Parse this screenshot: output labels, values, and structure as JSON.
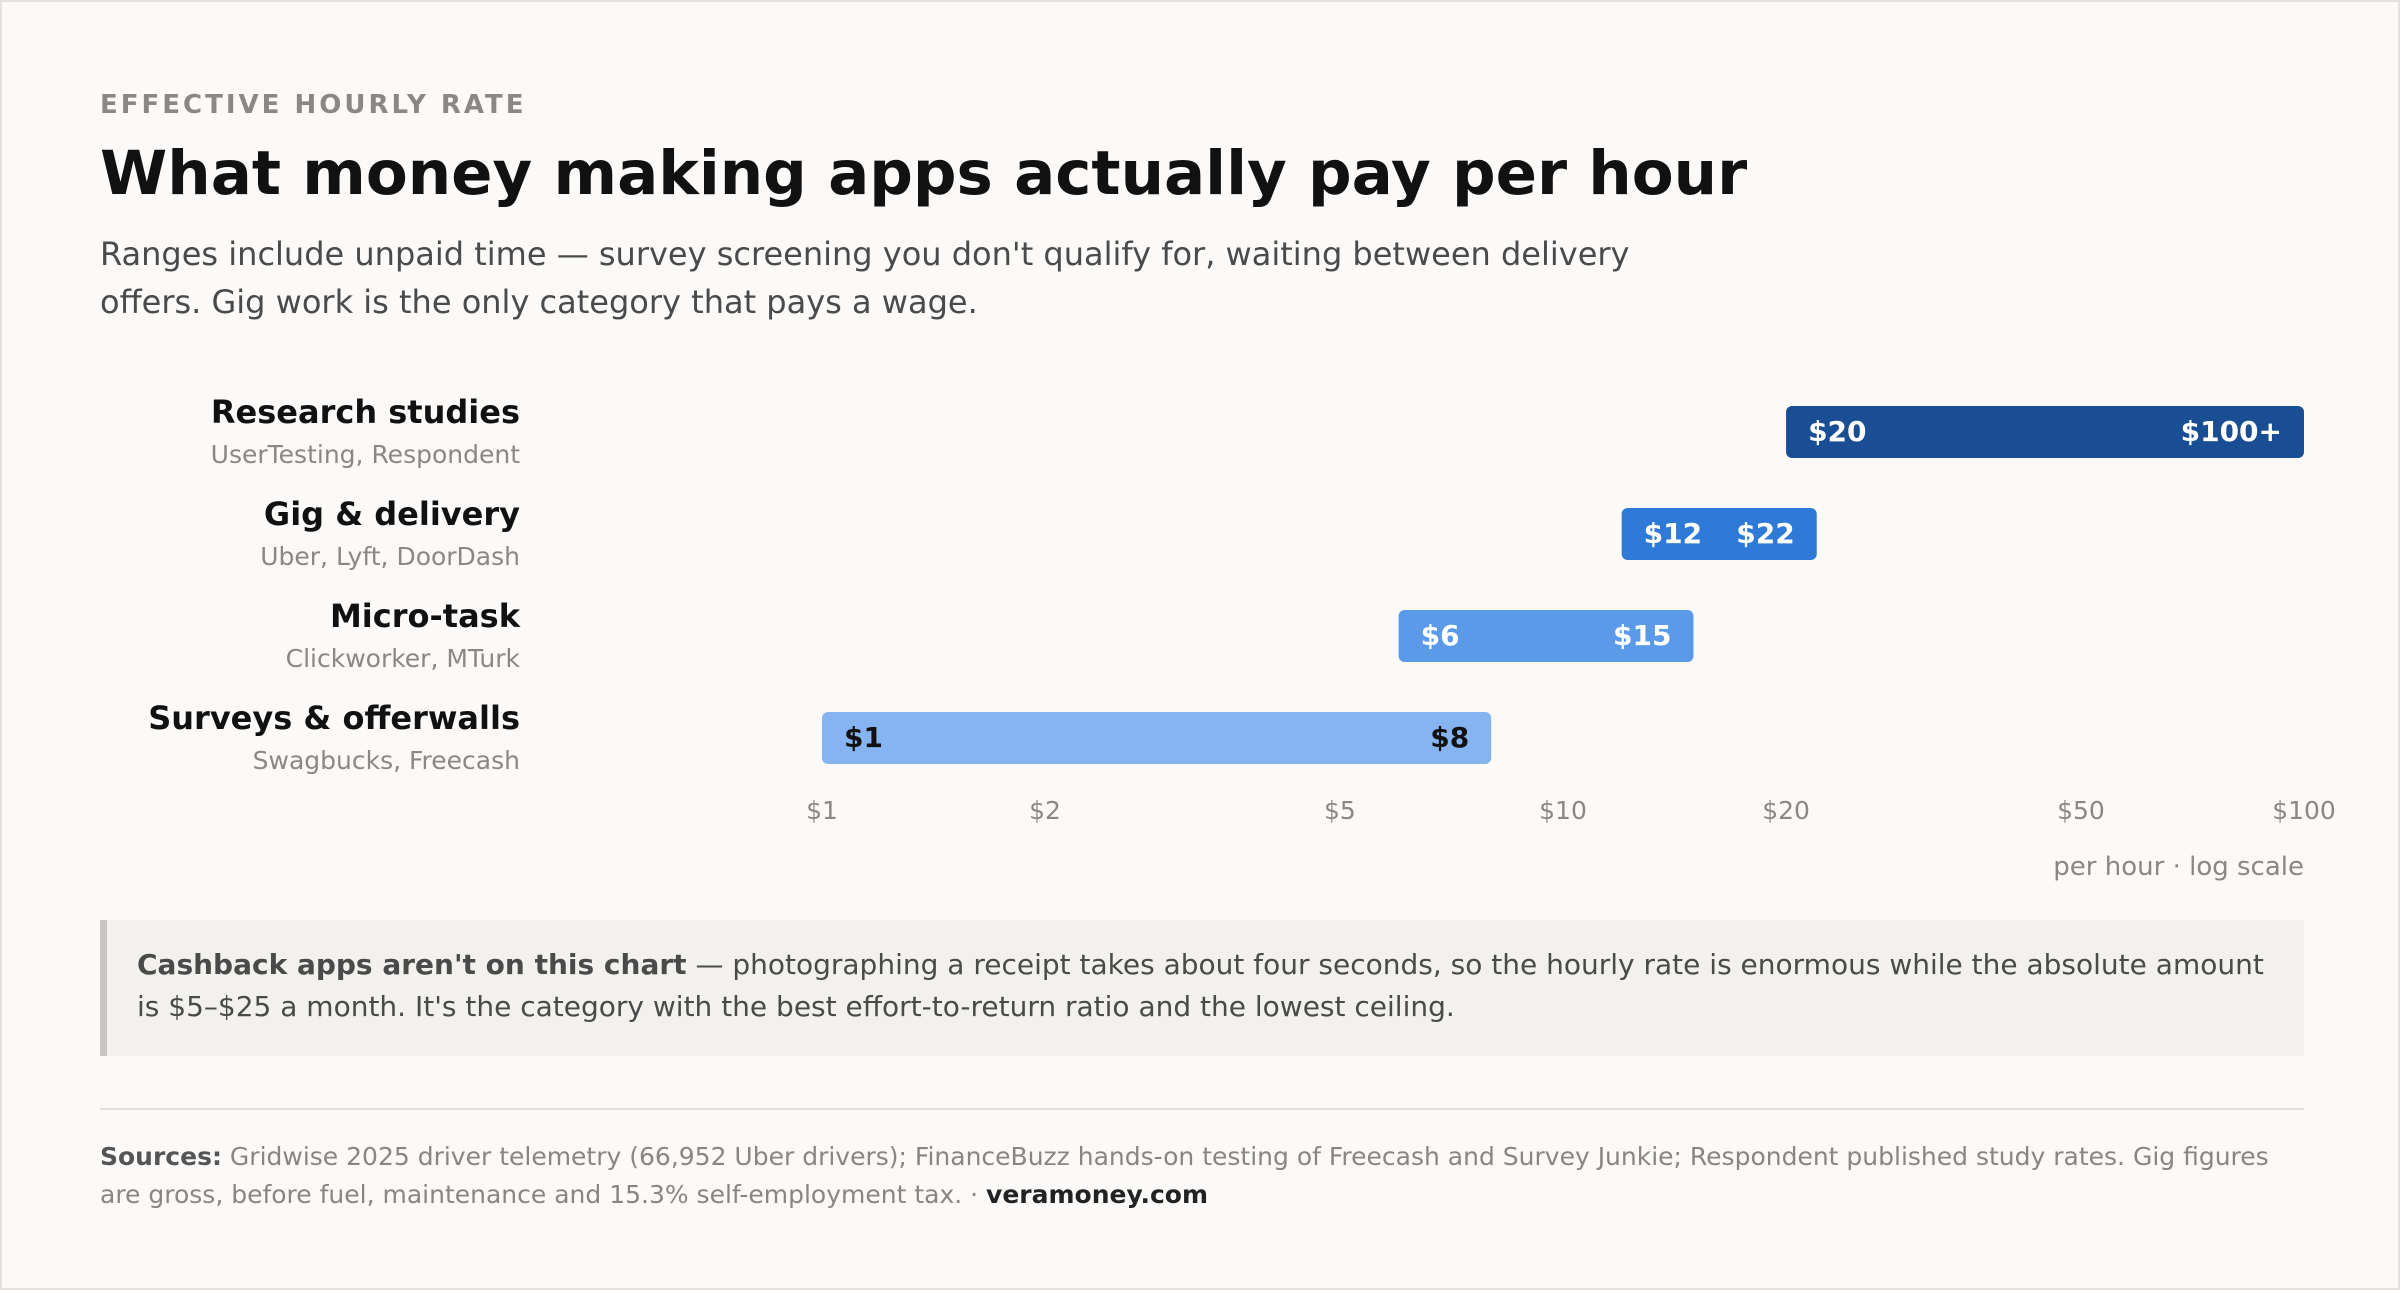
{
  "header": {
    "eyebrow": "EFFECTIVE HOURLY RATE",
    "title": "What money making apps actually pay per hour",
    "subtitle": "Ranges include unpaid time — survey screening you don't qualify for, waiting between delivery offers. Gig work is the only category that pays a wage."
  },
  "chart_data": {
    "type": "bar",
    "orientation": "horizontal-range",
    "x_scale": "log",
    "xlim": [
      1,
      100
    ],
    "x_ticks": [
      {
        "value": 1,
        "label": "$1"
      },
      {
        "value": 2,
        "label": "$2"
      },
      {
        "value": 5,
        "label": "$5"
      },
      {
        "value": 10,
        "label": "$10"
      },
      {
        "value": 20,
        "label": "$20"
      },
      {
        "value": 50,
        "label": "$50"
      },
      {
        "value": 100,
        "label": "$100"
      }
    ],
    "x_unit_label": "per hour · log scale",
    "grid": false,
    "categories": [
      {
        "name": "Research studies",
        "examples": "UserTesting, Respondent",
        "low": 20,
        "high": 100,
        "low_label": "$20",
        "high_label": "$100+",
        "color": "#1a4e94",
        "text_color": "#ffffff"
      },
      {
        "name": "Gig & delivery",
        "examples": "Uber, Lyft, DoorDash",
        "low": 12,
        "high": 22,
        "low_label": "$12",
        "high_label": "$22",
        "color": "#2f7ad6",
        "text_color": "#ffffff"
      },
      {
        "name": "Micro-task",
        "examples": "Clickworker, MTurk",
        "low": 6,
        "high": 15,
        "low_label": "$6",
        "high_label": "$15",
        "color": "#5a9ae8",
        "text_color": "#ffffff"
      },
      {
        "name": "Surveys & offerwalls",
        "examples": "Swagbucks, Freecash",
        "low": 1,
        "high": 8,
        "low_label": "$1",
        "high_label": "$8",
        "color": "#86b4f0",
        "text_color": "#111111"
      }
    ]
  },
  "note": {
    "bold": "Cashback apps aren't on this chart",
    "text": " — photographing a receipt takes about four seconds, so the hourly rate is enormous while the absolute amount is $5–$25 a month. It's the category with the best effort-to-return ratio and the lowest ceiling."
  },
  "sources": {
    "label": "Sources:",
    "text": " Gridwise 2025 driver telemetry (66,952 Uber drivers); FinanceBuzz hands-on testing of Freecash and Survey Junkie; Respondent published study rates. Gig figures are gross, before fuel, maintenance and 15.3% self-employment tax. · ",
    "site": "veramoney.com"
  }
}
